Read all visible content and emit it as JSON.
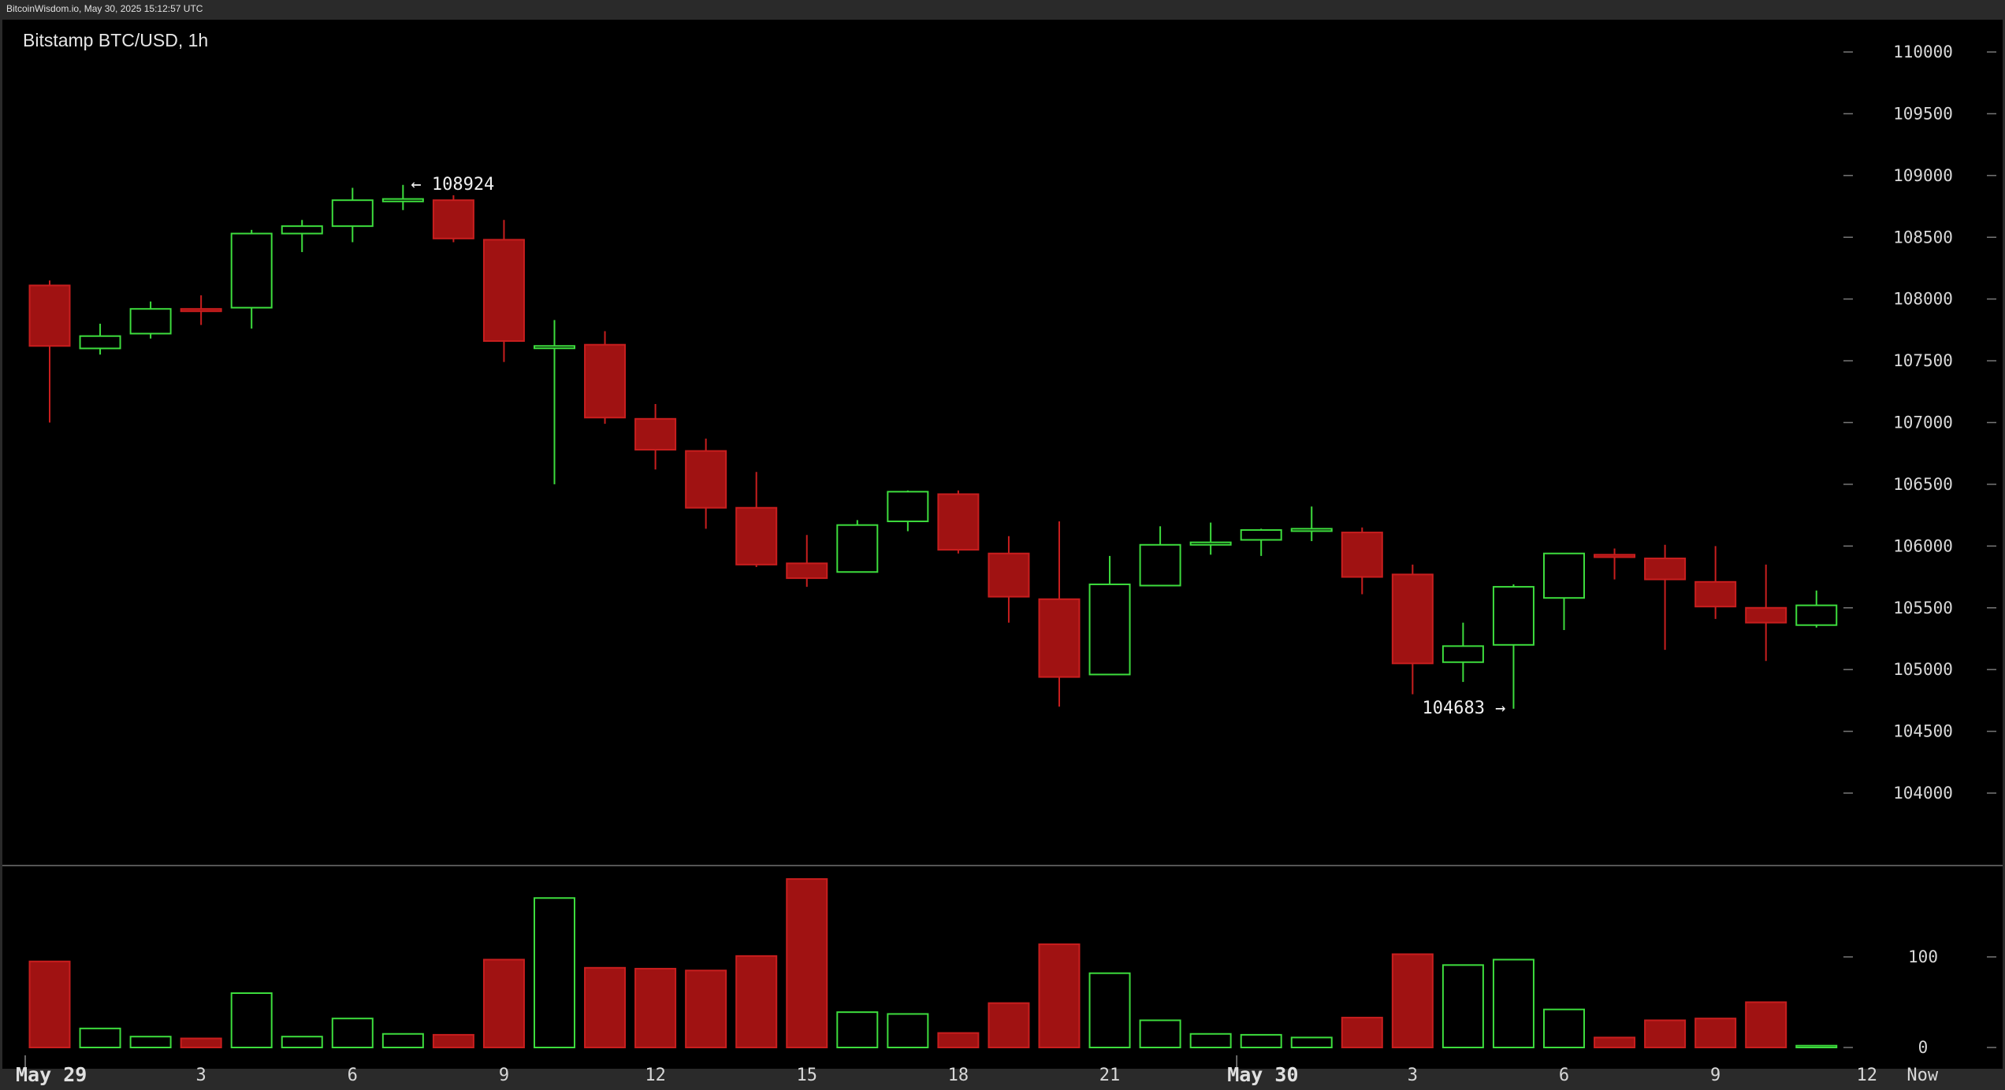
{
  "header": {
    "timestamp": "BitcoinWisdom.io, May 30, 2025 15:12:57 UTC",
    "title": "Bitstamp BTC/USD, 1h"
  },
  "colors": {
    "background": "#000000",
    "frame": "#2a2a2a",
    "up": "#3ddc3d",
    "down": "#a01212",
    "down_border": "#c81e1e",
    "text": "#d8d8d8",
    "separator": "#555555"
  },
  "chart_data": {
    "type": "candlestick",
    "title": "Bitstamp BTC/USD, 1h",
    "y_price_range": [
      103300,
      110300
    ],
    "y_price_ticks": [
      110000,
      109500,
      109000,
      108500,
      108000,
      107500,
      107000,
      106500,
      106000,
      105500,
      105000,
      104500,
      104000
    ],
    "y_volume_range": [
      0,
      140
    ],
    "y_volume_ticks": [
      100,
      0
    ],
    "x_ticks": [
      {
        "index": 0,
        "label": "May 29",
        "bold": true
      },
      {
        "index": 3,
        "label": "3",
        "bold": false
      },
      {
        "index": 6,
        "label": "6",
        "bold": false
      },
      {
        "index": 9,
        "label": "9",
        "bold": false
      },
      {
        "index": 12,
        "label": "12",
        "bold": false
      },
      {
        "index": 15,
        "label": "15",
        "bold": false
      },
      {
        "index": 18,
        "label": "18",
        "bold": false
      },
      {
        "index": 21,
        "label": "21",
        "bold": false
      },
      {
        "index": 24,
        "label": "May 30",
        "bold": true
      },
      {
        "index": 27,
        "label": "3",
        "bold": false
      },
      {
        "index": 30,
        "label": "6",
        "bold": false
      },
      {
        "index": 33,
        "label": "9",
        "bold": false
      },
      {
        "index": 36,
        "label": "12",
        "bold": false
      },
      {
        "index": 37.1,
        "label": "Now",
        "bold": false
      }
    ],
    "annotations": [
      {
        "label": "← 108924",
        "index": 7,
        "value": 108924,
        "side": "right"
      },
      {
        "label": "104683 →",
        "index": 29,
        "value": 104683,
        "side": "left"
      }
    ],
    "candles": [
      {
        "o": 108110,
        "h": 108150,
        "l": 107000,
        "c": 107620,
        "v": 95
      },
      {
        "o": 107600,
        "h": 107800,
        "l": 107550,
        "c": 107700,
        "v": 21
      },
      {
        "o": 107720,
        "h": 107980,
        "l": 107680,
        "c": 107920,
        "v": 12
      },
      {
        "o": 107920,
        "h": 108030,
        "l": 107790,
        "c": 107910,
        "v": 10
      },
      {
        "o": 107930,
        "h": 108560,
        "l": 107760,
        "c": 108530,
        "v": 60
      },
      {
        "o": 108530,
        "h": 108640,
        "l": 108380,
        "c": 108590,
        "v": 12
      },
      {
        "o": 108590,
        "h": 108900,
        "l": 108460,
        "c": 108800,
        "v": 32
      },
      {
        "o": 108790,
        "h": 108924,
        "l": 108720,
        "c": 108810,
        "v": 15
      },
      {
        "o": 108800,
        "h": 108840,
        "l": 108460,
        "c": 108490,
        "v": 14
      },
      {
        "o": 108480,
        "h": 108640,
        "l": 107490,
        "c": 107660,
        "v": 97
      },
      {
        "o": 107620,
        "h": 107830,
        "l": 106500,
        "c": 107620,
        "v": 165
      },
      {
        "o": 107630,
        "h": 107740,
        "l": 106990,
        "c": 107040,
        "v": 88
      },
      {
        "o": 107030,
        "h": 107150,
        "l": 106620,
        "c": 106780,
        "v": 87
      },
      {
        "o": 106770,
        "h": 106870,
        "l": 106140,
        "c": 106310,
        "v": 85
      },
      {
        "o": 106310,
        "h": 106600,
        "l": 105830,
        "c": 105850,
        "v": 101
      },
      {
        "o": 105860,
        "h": 106090,
        "l": 105670,
        "c": 105740,
        "v": 186
      },
      {
        "o": 105790,
        "h": 106210,
        "l": 105790,
        "c": 106170,
        "v": 39
      },
      {
        "o": 106200,
        "h": 106450,
        "l": 106120,
        "c": 106440,
        "v": 37
      },
      {
        "o": 106420,
        "h": 106450,
        "l": 105940,
        "c": 105970,
        "v": 16
      },
      {
        "o": 105940,
        "h": 106080,
        "l": 105380,
        "c": 105590,
        "v": 49
      },
      {
        "o": 105570,
        "h": 106200,
        "l": 104700,
        "c": 104940,
        "v": 114
      },
      {
        "o": 104960,
        "h": 105920,
        "l": 104960,
        "c": 105690,
        "v": 82
      },
      {
        "o": 105680,
        "h": 106160,
        "l": 105680,
        "c": 106010,
        "v": 30
      },
      {
        "o": 106010,
        "h": 106190,
        "l": 105930,
        "c": 106030,
        "v": 15
      },
      {
        "o": 106050,
        "h": 106140,
        "l": 105920,
        "c": 106130,
        "v": 14
      },
      {
        "o": 106140,
        "h": 106320,
        "l": 106040,
        "c": 106140,
        "v": 11
      },
      {
        "o": 106110,
        "h": 106150,
        "l": 105610,
        "c": 105750,
        "v": 33
      },
      {
        "o": 105770,
        "h": 105850,
        "l": 104800,
        "c": 105050,
        "v": 103
      },
      {
        "o": 105060,
        "h": 105380,
        "l": 104900,
        "c": 105190,
        "v": 91
      },
      {
        "o": 105200,
        "h": 105690,
        "l": 104683,
        "c": 105670,
        "v": 97
      },
      {
        "o": 105580,
        "h": 105940,
        "l": 105320,
        "c": 105940,
        "v": 42
      },
      {
        "o": 105930,
        "h": 105980,
        "l": 105730,
        "c": 105910,
        "v": 11
      },
      {
        "o": 105900,
        "h": 106010,
        "l": 105160,
        "c": 105730,
        "v": 30
      },
      {
        "o": 105710,
        "h": 106000,
        "l": 105410,
        "c": 105510,
        "v": 32
      },
      {
        "o": 105500,
        "h": 105850,
        "l": 105070,
        "c": 105380,
        "v": 50
      },
      {
        "o": 105360,
        "h": 105640,
        "l": 105340,
        "c": 105520,
        "v": 2
      }
    ]
  }
}
